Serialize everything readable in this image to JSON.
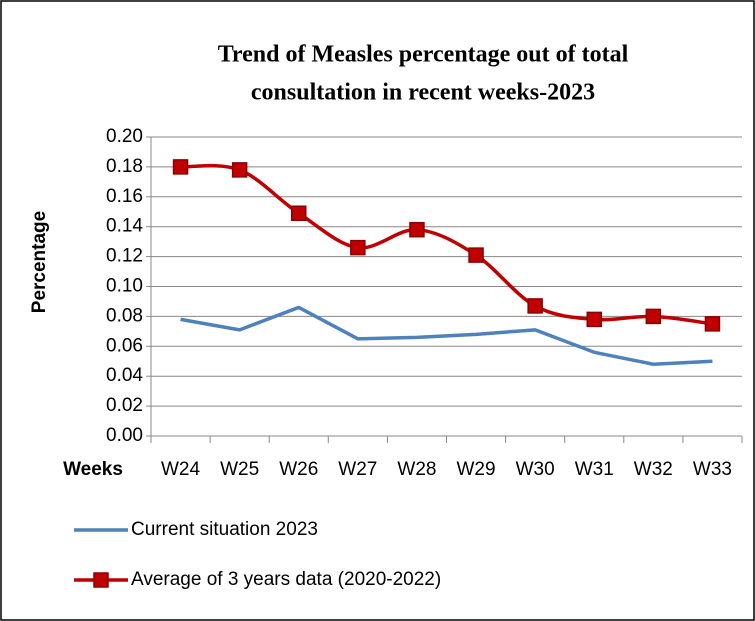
{
  "chart_data": {
    "type": "line",
    "title": [
      "Trend of Measles percentage out of total",
      "consultation in recent weeks-2023"
    ],
    "x_label": "Weeks",
    "y_label": "Percentage",
    "categories": [
      "W24",
      "W25",
      "W26",
      "W27",
      "W28",
      "W29",
      "W30",
      "W31",
      "W32",
      "W33"
    ],
    "series": [
      {
        "name": "Current situation 2023",
        "color": "#4f81bd",
        "marker": "none",
        "smooth": false,
        "values": [
          0.078,
          0.071,
          0.086,
          0.065,
          0.066,
          0.068,
          0.071,
          0.056,
          0.048,
          0.05
        ]
      },
      {
        "name": "Average of 3 years data (2020-2022)",
        "color": "#c00000",
        "marker": "square",
        "smooth": true,
        "values": [
          0.18,
          0.178,
          0.149,
          0.126,
          0.138,
          0.121,
          0.087,
          0.078,
          0.08,
          0.075
        ]
      }
    ],
    "ylim": [
      0,
      0.2
    ],
    "yticks": [
      {
        "value": 0,
        "label": "0.00"
      },
      {
        "value": 0.02,
        "label": "0.02"
      },
      {
        "value": 0.04,
        "label": "0.04"
      },
      {
        "value": 0.06,
        "label": "0.06"
      },
      {
        "value": 0.08,
        "label": "0.08"
      },
      {
        "value": 0.1,
        "label": "0.10"
      },
      {
        "value": 0.12,
        "label": "0.12"
      },
      {
        "value": 0.14,
        "label": "0.14"
      },
      {
        "value": 0.16,
        "label": "0.16"
      },
      {
        "value": 0.18,
        "label": "0.18"
      },
      {
        "value": 0.2,
        "label": "0.20"
      }
    ],
    "grid": true,
    "legend": "bottom"
  }
}
